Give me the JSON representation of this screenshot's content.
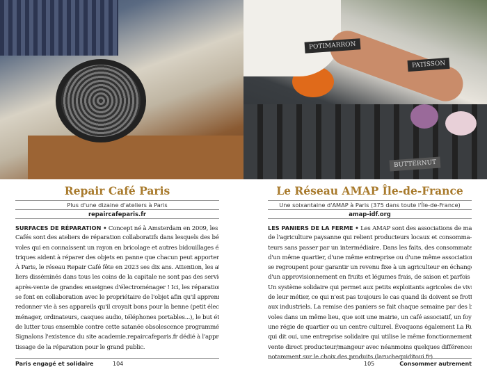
{
  "left_page": {
    "photo": {
      "signs": []
    },
    "title": "Repair Café Paris",
    "subtitle": "Plus d'une dizaine d'ateliers à Paris",
    "website": "repaircafeparis.fr",
    "lead": "SURFACES DE RÉPARATION •",
    "lines": [
      " Concept né à Amsterdam en 2009, les Repair",
      "Cafés sont des ateliers de réparation collaboratifs dans lesquels des béné-",
      "voles qui en connaissent un rayon en bricolage et autres bidouillages élec-",
      "triques aident à réparer des objets en panne que chacun peut apporter.",
      "À Paris, le réseau Repair Café fête en 2023 ses dix ans. Attention, les ate-",
      "liers disséminés dans tous les coins de la capitale ne sont pas des services",
      "après-vente de grandes enseignes d'électroménager ! Ici, les réparations",
      "se font en collaboration avec le propriétaire de l'objet afin qu'il apprenne à",
      "redonner vie à ses appareils qu'il croyait bons pour la benne (petit électro-",
      "ménager, ordinateurs, casques audio, téléphones portables...), le but étant",
      "de lutter tous ensemble contre cette satanée obsolescence programmée.",
      "Signalons l'existence du site academie.repaircafeparis.fr dédié à l'appren-",
      "tissage de la réparation pour le grand public."
    ],
    "footer": {
      "section": "Paris engagé et solidaire",
      "page": "104"
    }
  },
  "right_page": {
    "photo": {
      "signs": [
        "POTIMARRON",
        "PATISSON",
        "BUTTERNUT"
      ]
    },
    "title": "Le Réseau AMAP Île-de-France",
    "subtitle": "Une soixantaine d'AMAP à Paris (375 dans toute l'Île-de-France)",
    "website": "amap-idf.org",
    "lead": "LES PANIERS DE LA FERME •",
    "lines": [
      " Les AMAP sont des associations de maintien",
      "de l'agriculture paysanne qui relient producteurs locaux et consomma-",
      "teurs sans passer par un intermédiaire. Dans les faits, des consommateurs",
      "d'un même quartier, d'une même entreprise ou d'une même association",
      "se regroupent pour garantir un revenu fixe à un agriculteur en échange",
      "d'un approvisionnement en fruits et légumes frais, de saison et parfois bio.",
      "Un système solidaire qui permet aux petits exploitants agricoles de vivre",
      "de leur métier, ce qui n'est pas toujours le cas quand ils doivent se frotter",
      "aux industriels. La remise des paniers se fait chaque semaine par des béné-",
      "voles dans un même lieu, que soit une mairie, un café associatif, un foyer,",
      "une régie de quartier ou un centre culturel. Évoquons également La Ruche",
      "qui dit oui, une entreprise solidaire qui utilise le même fonctionnement de",
      "vente direct producteur/mangeur avec néanmoins quelques différences,",
      "notamment sur le choix des produits (laruchequiditoui.fr)."
    ],
    "footer": {
      "page": "105",
      "section": "Consommer autrement"
    }
  },
  "colors": {
    "title": "#a87a2c"
  }
}
